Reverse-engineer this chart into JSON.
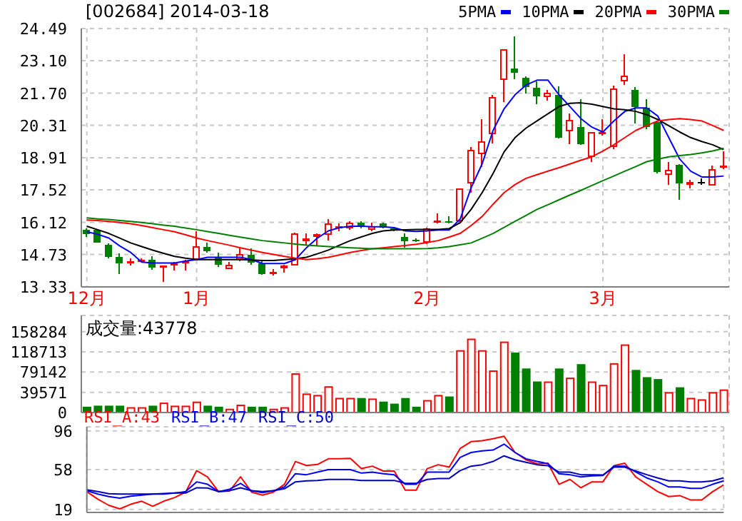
{
  "chart_data": [
    {
      "type": "candlestick",
      "title": "[002684] 2014-03-18",
      "categories": [
        "12月",
        null,
        null,
        null,
        null,
        null,
        null,
        null,
        null,
        null,
        "1月",
        null,
        null,
        null,
        null,
        null,
        null,
        null,
        null,
        null,
        null,
        null,
        null,
        null,
        null,
        null,
        null,
        null,
        null,
        null,
        null,
        "2月",
        null,
        null,
        null,
        null,
        null,
        null,
        null,
        null,
        null,
        null,
        null,
        null,
        null,
        null,
        null,
        "3月",
        null,
        null,
        null,
        null,
        null,
        null,
        null,
        null,
        null,
        null,
        null
      ],
      "ohlc": [
        [
          15.81,
          15.85,
          15.5,
          15.62
        ],
        [
          15.81,
          15.83,
          15.23,
          15.23
        ],
        [
          15.15,
          15.2,
          14.55,
          14.61
        ],
        [
          14.61,
          14.78,
          13.89,
          14.34
        ],
        [
          14.34,
          14.55,
          14.24,
          14.44
        ],
        [
          14.42,
          14.57,
          14.4,
          14.49
        ],
        [
          14.51,
          14.67,
          14.07,
          14.16
        ],
        [
          14.16,
          14.26,
          13.54,
          14.24
        ],
        [
          14.26,
          14.4,
          14.03,
          14.34
        ],
        [
          14.36,
          14.49,
          14.03,
          14.44
        ],
        [
          14.51,
          15.75,
          14.47,
          15.09
        ],
        [
          15.05,
          15.23,
          14.82,
          14.86
        ],
        [
          14.61,
          14.82,
          14.2,
          14.28
        ],
        [
          14.09,
          14.4,
          14.09,
          14.3
        ],
        [
          14.51,
          15.07,
          14.45,
          14.76
        ],
        [
          14.71,
          14.98,
          14.3,
          14.38
        ],
        [
          14.34,
          14.45,
          13.85,
          13.89
        ],
        [
          13.89,
          14.09,
          13.83,
          13.99
        ],
        [
          14.14,
          14.3,
          13.95,
          14.26
        ],
        [
          14.26,
          15.66,
          14.24,
          15.64
        ],
        [
          15.29,
          15.64,
          15.13,
          15.44
        ],
        [
          15.48,
          15.64,
          15.13,
          15.6
        ],
        [
          15.58,
          16.26,
          15.33,
          16.06
        ],
        [
          15.85,
          16.06,
          15.75,
          15.95
        ],
        [
          15.85,
          16.16,
          15.81,
          16.1
        ],
        [
          16.12,
          16.16,
          15.85,
          15.91
        ],
        [
          15.81,
          16.1,
          15.75,
          15.95
        ],
        [
          16.06,
          16.1,
          15.85,
          15.89
        ],
        [
          15.87,
          15.93,
          15.73,
          15.77
        ],
        [
          15.48,
          15.64,
          15.02,
          15.31
        ],
        [
          15.38,
          15.42,
          15.27,
          15.31
        ],
        [
          15.23,
          15.89,
          15.19,
          15.85
        ],
        [
          16.1,
          16.51,
          16.06,
          16.2
        ],
        [
          16.18,
          16.37,
          16.06,
          16.14
        ],
        [
          16.16,
          17.59,
          16.14,
          17.57
        ],
        [
          17.81,
          19.36,
          17.4,
          19.24
        ],
        [
          19.05,
          20.56,
          18.5,
          19.61
        ],
        [
          19.94,
          21.63,
          19.53,
          21.53
        ],
        [
          22.26,
          23.6,
          21.33,
          23.6
        ],
        [
          22.77,
          24.16,
          22.3,
          22.57
        ],
        [
          22.36,
          22.42,
          21.68,
          21.95
        ],
        [
          21.93,
          22.22,
          21.22,
          21.57
        ],
        [
          21.53,
          21.85,
          21.39,
          21.72
        ],
        [
          21.63,
          21.98,
          19.74,
          19.78
        ],
        [
          20.04,
          20.81,
          19.49,
          20.54
        ],
        [
          20.23,
          21.43,
          19.47,
          19.51
        ],
        [
          18.95,
          20.02,
          18.74,
          20.02
        ],
        [
          19.92,
          20.56,
          19.86,
          20.02
        ],
        [
          19.36,
          22.01,
          19.28,
          21.9
        ],
        [
          22.21,
          23.39,
          22.05,
          22.46
        ],
        [
          21.84,
          21.95,
          20.4,
          21.1
        ],
        [
          21.06,
          21.43,
          20.14,
          20.23
        ],
        [
          20.46,
          20.5,
          18.23,
          18.29
        ],
        [
          18.16,
          18.74,
          17.75,
          18.39
        ],
        [
          18.6,
          18.64,
          17.09,
          17.81
        ],
        [
          17.75,
          17.96,
          17.59,
          17.85
        ],
        [
          17.85,
          18.02,
          17.73,
          17.85
        ],
        [
          17.71,
          18.58,
          17.71,
          18.43
        ],
        [
          18.5,
          19.2,
          18.43,
          18.58
        ]
      ],
      "colors": [
        "#008000",
        "#008000",
        "#008000",
        "#008000",
        "#ff0000",
        "#ff0000",
        "#008000",
        "#ff0000",
        "#ff0000",
        "#ff0000",
        "#ff0000",
        "#008000",
        "#008000",
        "#ff0000",
        "#ff0000",
        "#008000",
        "#008000",
        "#ff0000",
        "#ff0000",
        "#ff0000",
        "#ff0000",
        "#ff0000",
        "#ff0000",
        "#ff0000",
        "#ff0000",
        "#008000",
        "#ff0000",
        "#008000",
        "#008000",
        "#008000",
        "#008000",
        "#ff0000",
        "#ff0000",
        "#008000",
        "#ff0000",
        "#ff0000",
        "#ff0000",
        "#ff0000",
        "#ff0000",
        "#008000",
        "#008000",
        "#008000",
        "#ff0000",
        "#008000",
        "#ff0000",
        "#008000",
        "#ff0000",
        "#ff0000",
        "#ff0000",
        "#ff0000",
        "#008000",
        "#008000",
        "#008000",
        "#ff0000",
        "#008000",
        "#ff0000",
        "#000000",
        "#ff0000",
        "#ff0000"
      ],
      "series": [
        {
          "name": "5PMA",
          "type": "line",
          "color": "#0000ff",
          "values": [
            15.71,
            15.6,
            15.44,
            15.1,
            14.82,
            14.4,
            14.36,
            14.36,
            14.36,
            14.45,
            14.51,
            14.61,
            14.61,
            14.61,
            14.61,
            14.51,
            14.34,
            14.34,
            14.34,
            14.51,
            15.02,
            15.44,
            15.75,
            15.89,
            15.95,
            15.95,
            15.93,
            15.93,
            15.89,
            15.75,
            15.73,
            15.75,
            15.79,
            15.79,
            16.26,
            17.61,
            18.64,
            20.09,
            21.02,
            21.63,
            22.05,
            22.26,
            22.26,
            21.63,
            21.12,
            20.6,
            20.23,
            20.02,
            20.5,
            20.91,
            21.06,
            21.06,
            20.71,
            19.78,
            18.85,
            18.33,
            18.08,
            18.08,
            18.12
          ]
        },
        {
          "name": "10PMA",
          "type": "line",
          "color": "#000000",
          "values": [
            15.95,
            15.8,
            15.64,
            15.44,
            15.23,
            15.07,
            14.92,
            14.78,
            14.65,
            14.57,
            14.51,
            14.51,
            14.51,
            14.51,
            14.51,
            14.49,
            14.47,
            14.47,
            14.51,
            14.55,
            14.61,
            14.76,
            14.92,
            15.13,
            15.33,
            15.49,
            15.64,
            15.75,
            15.79,
            15.8,
            15.81,
            15.81,
            15.81,
            15.85,
            16.1,
            16.68,
            17.4,
            18.23,
            19.16,
            19.78,
            20.19,
            20.5,
            20.81,
            21.12,
            21.26,
            21.28,
            21.22,
            21.12,
            21.02,
            20.98,
            20.91,
            20.77,
            20.56,
            20.29,
            20.02,
            19.78,
            19.61,
            19.47,
            19.26
          ]
        },
        {
          "name": "20PMA",
          "type": "line",
          "color": "#ff0000",
          "values": [
            16.22,
            16.2,
            16.16,
            16.11,
            16.06,
            15.98,
            15.89,
            15.8,
            15.71,
            15.58,
            15.44,
            15.33,
            15.23,
            15.13,
            15.02,
            14.92,
            14.82,
            14.73,
            14.65,
            14.57,
            14.51,
            14.55,
            14.61,
            14.71,
            14.82,
            14.9,
            14.98,
            15.02,
            15.07,
            15.12,
            15.17,
            15.25,
            15.33,
            15.48,
            15.64,
            15.98,
            16.37,
            16.9,
            17.4,
            17.75,
            18.02,
            18.18,
            18.33,
            18.48,
            18.64,
            18.8,
            18.95,
            19.2,
            19.47,
            19.78,
            20.09,
            20.3,
            20.5,
            20.56,
            20.6,
            20.56,
            20.5,
            20.3,
            20.09
          ]
        },
        {
          "name": "30PMA",
          "type": "line",
          "color": "#008000",
          "values": [
            16.31,
            16.27,
            16.24,
            16.2,
            16.16,
            16.11,
            16.06,
            16.0,
            15.95,
            15.87,
            15.8,
            15.72,
            15.64,
            15.56,
            15.48,
            15.4,
            15.33,
            15.28,
            15.23,
            15.18,
            15.13,
            15.1,
            15.07,
            15.05,
            15.02,
            15.0,
            14.98,
            14.98,
            14.98,
            14.98,
            14.98,
            14.99,
            15.02,
            15.07,
            15.15,
            15.23,
            15.43,
            15.64,
            15.9,
            16.16,
            16.42,
            16.68,
            16.88,
            17.09,
            17.3,
            17.5,
            17.71,
            17.92,
            18.12,
            18.33,
            18.53,
            18.74,
            18.85,
            18.95,
            19.0,
            19.05,
            19.12,
            19.2,
            19.32
          ]
        }
      ],
      "ylim": [
        13.33,
        24.49
      ],
      "yticks": [
        24.49,
        {
          "value": 23.1,
          "label": "23.10"
        },
        {
          "value": 21.7,
          "label": "21.70"
        },
        20.31,
        18.91,
        17.52,
        16.12,
        14.73,
        13.33
      ],
      "grid": true,
      "legend": "top right",
      "marker": "none"
    },
    {
      "type": "bar",
      "title": "成交量:43778",
      "categories": [
        null,
        null,
        null,
        null,
        null,
        null,
        null,
        null,
        null,
        null,
        null,
        null,
        null,
        null,
        null,
        null,
        null,
        null,
        null,
        null,
        null,
        null,
        null,
        null,
        null,
        null,
        null,
        null,
        null,
        null,
        null,
        null,
        null,
        null,
        null,
        null,
        null,
        null,
        null,
        null,
        null,
        null,
        null,
        null,
        null,
        null,
        null,
        null,
        null,
        null,
        null,
        null,
        null,
        null,
        null,
        null,
        null,
        null,
        null
      ],
      "values": [
        10000,
        12000,
        12000,
        12000,
        9000,
        9000,
        12000,
        18000,
        12000,
        12000,
        20000,
        12000,
        10000,
        6000,
        14000,
        10000,
        10000,
        6000,
        9000,
        75400,
        35800,
        33000,
        50000,
        27300,
        27300,
        27000,
        26000,
        20000,
        16000,
        27000,
        10000,
        23000,
        33000,
        30000,
        120600,
        143200,
        120600,
        81000,
        137500,
        115900,
        84800,
        59400,
        59400,
        84800,
        66900,
        93300,
        59400,
        52800,
        95200,
        131900,
        82000,
        67800,
        64100,
        38600,
        48000,
        27300,
        24500,
        38600,
        43778
      ],
      "colors": [
        "#008000",
        "#008000",
        "#008000",
        "#008000",
        "#ff0000",
        "#ff0000",
        "#008000",
        "#ff0000",
        "#ff0000",
        "#ff0000",
        "#ff0000",
        "#008000",
        "#008000",
        "#ff0000",
        "#ff0000",
        "#008000",
        "#008000",
        "#ff0000",
        "#ff0000",
        "#ff0000",
        "#ff0000",
        "#ff0000",
        "#ff0000",
        "#ff0000",
        "#ff0000",
        "#008000",
        "#ff0000",
        "#008000",
        "#008000",
        "#008000",
        "#008000",
        "#ff0000",
        "#ff0000",
        "#008000",
        "#ff0000",
        "#ff0000",
        "#ff0000",
        "#ff0000",
        "#ff0000",
        "#008000",
        "#008000",
        "#008000",
        "#ff0000",
        "#008000",
        "#ff0000",
        "#008000",
        "#ff0000",
        "#ff0000",
        "#ff0000",
        "#ff0000",
        "#008000",
        "#008000",
        "#008000",
        "#ff0000",
        "#008000",
        "#ff0000",
        "#ff0000",
        "#ff0000",
        "#ff0000"
      ],
      "ylim": [
        0,
        190000
      ],
      "yticks": [
        0,
        39571,
        79142,
        118713,
        158284
      ],
      "grid": true,
      "tick_labels": "y"
    },
    {
      "type": "line",
      "categories": [
        null,
        null,
        null,
        null,
        null,
        null,
        null,
        null,
        null,
        null,
        null,
        null,
        null,
        null,
        null,
        null,
        null,
        null,
        null,
        null,
        null,
        null,
        null,
        null,
        null,
        null,
        null,
        null,
        null,
        null,
        null,
        null,
        null,
        null,
        null,
        null,
        null,
        null,
        null,
        null,
        null,
        null,
        null,
        null,
        null,
        null,
        null,
        null,
        null,
        null,
        null,
        null,
        null,
        null,
        null,
        null,
        null,
        null,
        null
      ],
      "series": [
        {
          "name": "RSI_A:43",
          "color": "#ff0000",
          "values": [
            36.4,
            29,
            23,
            19.5,
            24,
            27,
            22,
            27,
            30.6,
            36,
            57,
            50.8,
            36.4,
            37,
            51,
            36,
            33,
            36,
            43.6,
            66,
            62,
            63,
            68.6,
            68.6,
            69,
            59,
            61.4,
            56.6,
            56.6,
            37.8,
            37.8,
            59,
            62.8,
            60.4,
            78.7,
            85.4,
            86.4,
            88.3,
            90.7,
            74.8,
            67.6,
            63.8,
            64.3,
            43.6,
            48.4,
            40.2,
            46,
            46,
            61.8,
            64.3,
            50.8,
            43.6,
            36.4,
            31.6,
            32.5,
            28.2,
            28.2,
            36.4,
            43
          ]
        },
        {
          "name": "RSI_B:47",
          "color": "#0000ff",
          "values": [
            37.3,
            34,
            31.6,
            30,
            32,
            33,
            34,
            34,
            35,
            36.4,
            46,
            43.6,
            36.4,
            38.8,
            44.5,
            37.3,
            35.4,
            37.3,
            41,
            54,
            53,
            55.6,
            58,
            58,
            58,
            54.6,
            55.6,
            54,
            53,
            43.6,
            43.6,
            55.6,
            55.6,
            55.6,
            70,
            74.8,
            76.3,
            77.2,
            83,
            74.8,
            68.6,
            66,
            63.8,
            54,
            53,
            50.8,
            51.8,
            52.2,
            61.4,
            61.4,
            55.6,
            49.8,
            46,
            41,
            41,
            39.7,
            39.7,
            43.6,
            47
          ]
        },
        {
          "name": "RSI_C:50",
          "color": "#0000c0",
          "values": [
            38.3,
            36.4,
            34.4,
            34,
            34,
            34,
            34,
            34.5,
            35,
            35,
            40.2,
            40,
            36.4,
            37.3,
            40.2,
            37.3,
            36.4,
            37.3,
            39.2,
            46,
            47,
            47.4,
            48.4,
            48.4,
            48.4,
            47.4,
            47.4,
            47.4,
            47.4,
            44.5,
            44.5,
            48.4,
            49.3,
            49.3,
            57,
            61.4,
            62.8,
            66,
            71.5,
            67.6,
            65.2,
            62.8,
            61.8,
            55.6,
            55.6,
            53,
            53,
            52.7,
            60.4,
            60.4,
            56.6,
            53,
            49.8,
            47,
            47,
            46,
            46,
            47,
            50
          ]
        }
      ],
      "ylim": [
        16,
        100
      ],
      "yticks": [
        19,
        58,
        96
      ],
      "grid": true,
      "legend": "top left",
      "marker": "none",
      "tick_labels": "y"
    }
  ]
}
